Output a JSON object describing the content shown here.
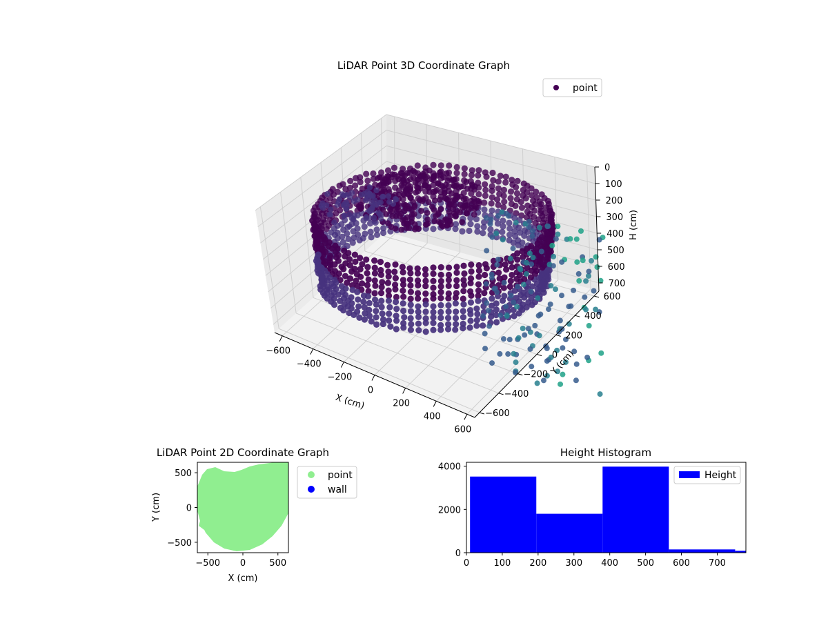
{
  "chart_data": [
    {
      "type": "scatter3d",
      "title": "LiDAR Point 3D Coordinate Graph",
      "xlabel": "X (cm)",
      "ylabel": "Y (cm)",
      "zlabel": "H (cm)",
      "xticks": [
        -600,
        -400,
        -200,
        0,
        200,
        400,
        600
      ],
      "yticks": [
        -600,
        -400,
        -200,
        0,
        200,
        400,
        600
      ],
      "zticks": [
        0,
        100,
        200,
        300,
        400,
        500,
        600,
        700
      ],
      "xlim": [
        -650,
        650
      ],
      "ylim": [
        -650,
        650
      ],
      "zlim": [
        750,
        0
      ],
      "legend": [
        "point"
      ],
      "legend_position": "top-right",
      "colormap": "viridis",
      "grid": true,
      "colors": {
        "point_legend": "#440154"
      }
    },
    {
      "type": "scatter",
      "title": "LiDAR Point 2D Coordinate Graph",
      "xlabel": "X (cm)",
      "ylabel": "Y (cm)",
      "xticks": [
        -500,
        0,
        500
      ],
      "yticks": [
        -500,
        0,
        500
      ],
      "xlim": [
        -650,
        650
      ],
      "ylim": [
        -650,
        650
      ],
      "series": [
        {
          "name": "point",
          "color": "#90ee90"
        },
        {
          "name": "wall",
          "color": "#0000ff"
        }
      ],
      "legend_position": "outside-right",
      "grid": false
    },
    {
      "type": "bar",
      "subtype": "histogram",
      "title": "Height Histogram",
      "bins": [
        [
          10,
          195,
          3520
        ],
        [
          195,
          380,
          1800
        ],
        [
          380,
          565,
          3980
        ],
        [
          565,
          750,
          150
        ],
        [
          750,
          935,
          90
        ]
      ],
      "xticks": [
        0,
        100,
        200,
        300,
        400,
        500,
        600,
        700
      ],
      "yticks": [
        0,
        2000,
        4000
      ],
      "xlim": [
        0,
        780
      ],
      "ylim": [
        0,
        4180
      ],
      "series": [
        {
          "name": "Height",
          "color": "#0000ff"
        }
      ],
      "legend_position": "top-right",
      "grid": false
    }
  ]
}
